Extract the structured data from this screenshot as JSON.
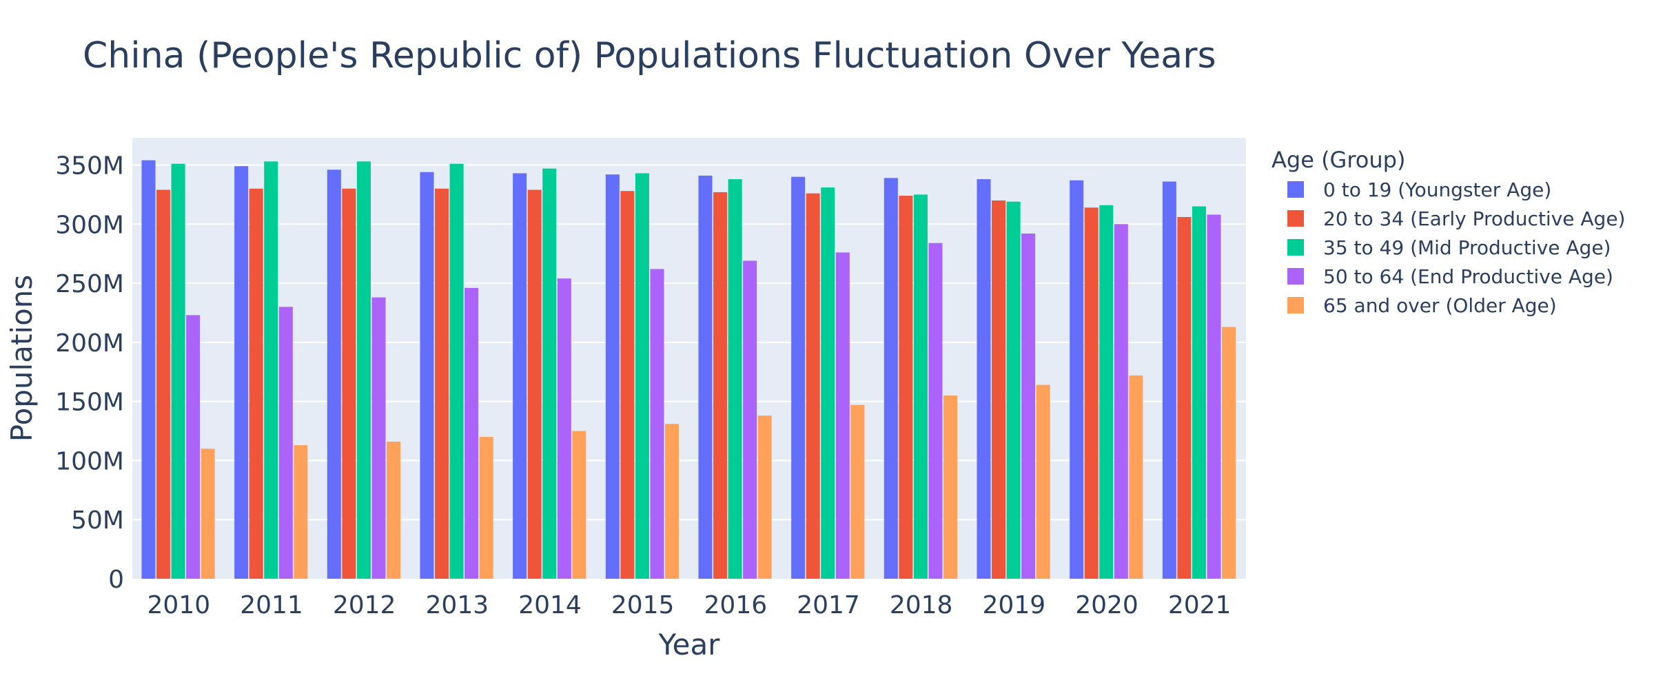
{
  "chart_data": {
    "type": "bar",
    "title": "China (People's Republic of) Populations Fluctuation Over Years",
    "xlabel": "Year",
    "ylabel": "Populations",
    "categories": [
      "2010",
      "2011",
      "2012",
      "2013",
      "2014",
      "2015",
      "2016",
      "2017",
      "2018",
      "2019",
      "2020",
      "2021"
    ],
    "ylim": [
      0,
      373000000
    ],
    "yticks": [
      0,
      50000000,
      100000000,
      150000000,
      200000000,
      250000000,
      300000000,
      350000000
    ],
    "ytick_labels": [
      "0",
      "50M",
      "100M",
      "150M",
      "200M",
      "250M",
      "300M",
      "350M"
    ],
    "grid": true,
    "legend": {
      "title": "Age (Group)",
      "placement": "right"
    },
    "plot_background": "#e5ecf6",
    "series": [
      {
        "name": "0 to 19 (Youngster Age)",
        "color": "#636efa",
        "values": [
          354000000,
          349000000,
          346000000,
          344000000,
          343000000,
          342000000,
          341000000,
          340000000,
          339000000,
          338000000,
          337000000,
          336000000
        ]
      },
      {
        "name": "20 to 34 (Early Productive Age)",
        "color": "#ef553b",
        "values": [
          329000000,
          330000000,
          330000000,
          330000000,
          329000000,
          328000000,
          327000000,
          326000000,
          324000000,
          320000000,
          314000000,
          306000000
        ]
      },
      {
        "name": "35 to 49 (Mid Productive Age)",
        "color": "#00cc96",
        "values": [
          351000000,
          353000000,
          353000000,
          351000000,
          347000000,
          343000000,
          338000000,
          331000000,
          325000000,
          319000000,
          316000000,
          315000000
        ]
      },
      {
        "name": "50 to 64 (End Productive Age)",
        "color": "#ab63fa",
        "values": [
          223000000,
          230000000,
          238000000,
          246000000,
          254000000,
          262000000,
          269000000,
          276000000,
          284000000,
          292000000,
          300000000,
          308000000
        ]
      },
      {
        "name": "65 and over (Older Age)",
        "color": "#ffa15a",
        "values": [
          110000000,
          113000000,
          116000000,
          120000000,
          125000000,
          131000000,
          138000000,
          147000000,
          155000000,
          164000000,
          172000000,
          213000000
        ]
      }
    ]
  }
}
